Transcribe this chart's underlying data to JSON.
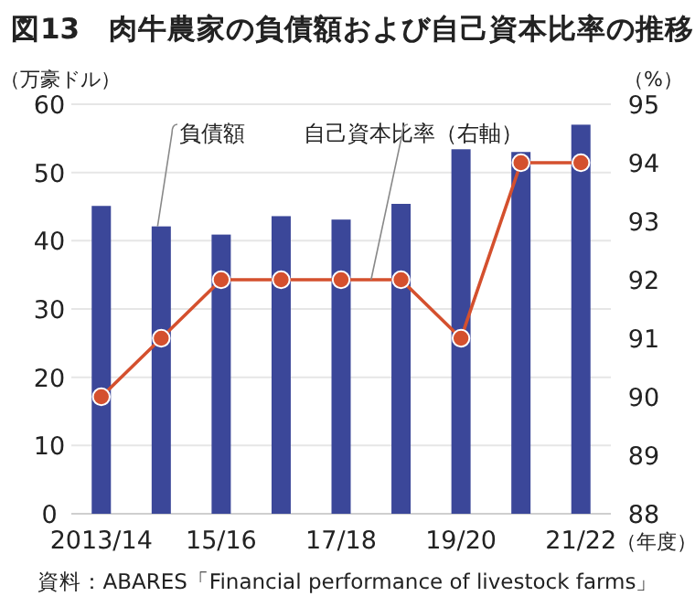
{
  "chart_data": {
    "type": "bar",
    "title": "図13　肉牛農家の負債額および自己資本比率の推移",
    "categories": [
      "2013/14",
      null,
      "15/16",
      null,
      "17/18",
      null,
      "19/20",
      null,
      "21/22"
    ],
    "xlabel": "（年度）",
    "ylabel": "（万豪ドル）",
    "y2label": "（%）",
    "ylim": [
      0,
      60
    ],
    "yticks": [
      0,
      10,
      20,
      30,
      40,
      50,
      60
    ],
    "y2lim": [
      88,
      95
    ],
    "y2ticks": [
      88,
      89,
      90,
      91,
      92,
      93,
      94,
      95
    ],
    "grid": "y",
    "legend": false,
    "marker": "circle",
    "series": [
      {
        "name": "負債額",
        "color": "#3b4799",
        "values": [
          45.1,
          42.1,
          40.9,
          43.6,
          43.1,
          45.4,
          53.4,
          53.0,
          57.0
        ]
      },
      {
        "name": "自己資本比率（右軸）",
        "type": "line",
        "axis": "y2",
        "color": "#d4502e",
        "values": [
          90,
          91,
          92,
          92,
          92,
          92,
          91,
          94,
          94
        ]
      }
    ],
    "annotations": [
      "資料：ABARES「Financial performance of livestock farms」"
    ]
  }
}
